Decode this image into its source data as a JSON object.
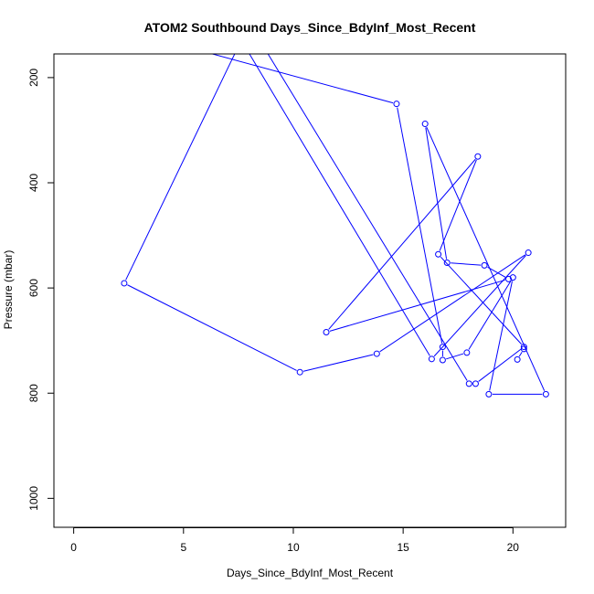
{
  "chart_data": {
    "type": "line",
    "title": "ATOM2 Southbound Days_Since_BdyInf_Most_Recent",
    "xlabel": "Days_Since_BdyInf_Most_Recent",
    "ylabel": "Pressure (mbar)",
    "xlim": [
      -0.9,
      22.4
    ],
    "ylim": [
      1055,
      155
    ],
    "y_reversed": true,
    "x_ticks": [
      0,
      5,
      10,
      15,
      20
    ],
    "y_ticks": [
      200,
      400,
      600,
      800,
      1000
    ],
    "grid": false,
    "legend": "none",
    "series": [
      {
        "color": "#0000ff",
        "marker": "open-circle",
        "points": [
          {
            "x": 1.9,
            "y": 105,
            "marker": false
          },
          {
            "x": 14.7,
            "y": 250
          },
          {
            "x": 16.8,
            "y": 712
          },
          {
            "x": 16.8,
            "y": 737
          },
          {
            "x": 17.9,
            "y": 723
          },
          {
            "x": 20.0,
            "y": 580
          },
          {
            "x": 18.9,
            "y": 802
          },
          {
            "x": 21.5,
            "y": 802
          },
          {
            "x": 16.0,
            "y": 288
          },
          {
            "x": 17.0,
            "y": 552
          },
          {
            "x": 18.7,
            "y": 557
          },
          {
            "x": 19.8,
            "y": 583
          },
          {
            "x": 11.5,
            "y": 684
          },
          {
            "x": 18.4,
            "y": 350
          },
          {
            "x": 16.6,
            "y": 536
          },
          {
            "x": 20.5,
            "y": 712
          },
          {
            "x": 18.3,
            "y": 782
          },
          {
            "x": 18.0,
            "y": 782
          },
          {
            "x": 8.0,
            "y": 97,
            "marker": false
          },
          {
            "x": 2.3,
            "y": 591
          },
          {
            "x": 10.3,
            "y": 760
          },
          {
            "x": 13.8,
            "y": 725
          },
          {
            "x": 20.7,
            "y": 533
          },
          {
            "x": 16.3,
            "y": 735
          },
          {
            "x": 6.5,
            "y": 50,
            "marker": false
          }
        ]
      },
      {
        "color": "#0000ff",
        "marker": "open-circle",
        "points": [
          {
            "x": 20.2,
            "y": 736
          },
          {
            "x": 20.5,
            "y": 716
          }
        ]
      }
    ]
  }
}
